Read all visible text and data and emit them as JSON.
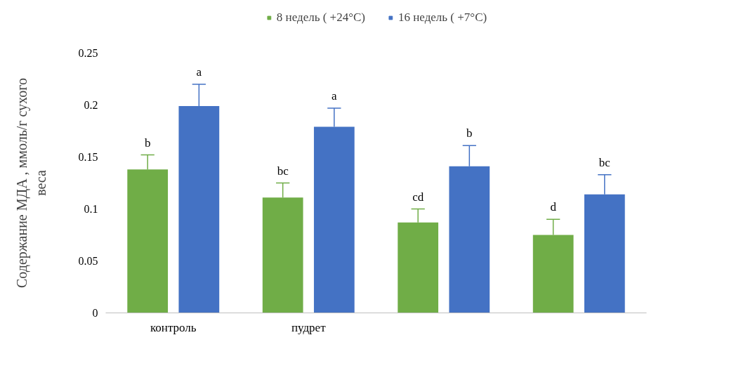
{
  "chart_data": {
    "type": "bar",
    "ylabel": "Содержание МДА , ммоль/г сухого веса",
    "categories": [
      "контроль",
      "пудрет",
      null,
      null
    ],
    "series": [
      {
        "name": "8 недель ( +24°C)",
        "color": "#70ad47",
        "values": [
          0.138,
          0.111,
          0.087,
          0.075
        ],
        "errors": [
          [
            0.138,
            0.152
          ],
          [
            0.111,
            0.125
          ],
          [
            0.087,
            0.1
          ],
          [
            0.075,
            0.09
          ]
        ],
        "value_labels": [
          "b",
          "bc",
          "cd",
          "d"
        ]
      },
      {
        "name": "16 недель ( +7°C)",
        "color": "#4472c4",
        "values": [
          0.199,
          0.179,
          0.141,
          0.114
        ],
        "errors": [
          [
            0.199,
            0.22
          ],
          [
            0.179,
            0.197
          ],
          [
            0.141,
            0.161
          ],
          [
            0.114,
            0.133
          ]
        ],
        "value_labels": [
          "a",
          "a",
          "b",
          "bc"
        ]
      }
    ],
    "ylim": [
      0,
      0.25
    ],
    "yticks": [
      0,
      0.05,
      0.1,
      0.15,
      0.2,
      0.25
    ],
    "grid": false,
    "legend": "top"
  }
}
